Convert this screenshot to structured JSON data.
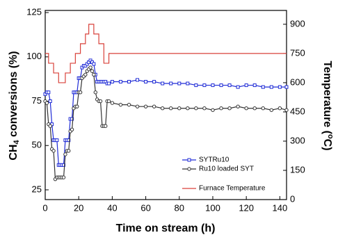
{
  "chart_data": {
    "type": "line",
    "xlabel": "Time on stream (h)",
    "ylabel": [
      "CH",
      "4",
      " conversions (%)"
    ],
    "y2label": [
      "Temperature (",
      "o",
      "C)"
    ],
    "xlim": [
      0,
      144
    ],
    "xticks": [
      0,
      20,
      40,
      60,
      80,
      100,
      120,
      140
    ],
    "ylim": [
      19.5,
      126.2
    ],
    "yticks": [
      25,
      50,
      75,
      100,
      125
    ],
    "y2lim": [
      0,
      971
    ],
    "y2ticks": [
      0,
      150,
      300,
      450,
      600,
      750,
      900
    ],
    "series": [
      {
        "name": "SYTRu10",
        "color": "#1f2bd6",
        "marker": "square",
        "x": [
          0,
          1,
          2,
          3,
          4,
          5,
          6,
          7,
          8,
          9,
          10,
          11,
          12,
          13,
          14,
          15,
          16,
          17,
          18,
          19,
          20,
          21,
          22,
          23,
          24,
          25,
          26,
          27,
          28,
          29,
          30,
          31,
          32,
          33,
          34,
          35,
          36,
          37,
          38,
          40,
          45,
          50,
          55,
          60,
          65,
          70,
          75,
          80,
          85,
          90,
          95,
          100,
          105,
          110,
          115,
          120,
          125,
          130,
          135,
          140,
          144
        ],
        "values": [
          79,
          80,
          80,
          75,
          62,
          53,
          53,
          53,
          39,
          39,
          39,
          39,
          53,
          53,
          53,
          65,
          65,
          80,
          80,
          80,
          88,
          88,
          94,
          95,
          95,
          96,
          97,
          98,
          97,
          96,
          90,
          86,
          86,
          86,
          86,
          86,
          86,
          85,
          85,
          86,
          86,
          86,
          87,
          86,
          86,
          85,
          85,
          85,
          85,
          84,
          84,
          84,
          84,
          84,
          83,
          84,
          84,
          83,
          83,
          83,
          83
        ]
      },
      {
        "name": "Ru10 loaded SYT",
        "color": "#333333",
        "marker": "circle",
        "x": [
          0,
          1,
          2,
          3,
          4,
          5,
          6,
          7,
          8,
          9,
          10,
          11,
          12,
          13,
          14,
          15,
          16,
          17,
          18,
          19,
          20,
          21,
          22,
          23,
          24,
          25,
          26,
          27,
          28,
          29,
          30,
          31,
          32,
          33,
          34,
          35,
          36,
          37,
          38,
          40,
          45,
          50,
          55,
          60,
          65,
          70,
          75,
          80,
          85,
          90,
          95,
          100,
          105,
          110,
          115,
          120,
          125,
          130,
          135,
          140,
          144
        ],
        "values": [
          75,
          74,
          62,
          61,
          48,
          47,
          31,
          32,
          32,
          32,
          32,
          32,
          45,
          47,
          47,
          58,
          59,
          71,
          72,
          72,
          80,
          80,
          88,
          89,
          90,
          92,
          93,
          94,
          92,
          90,
          80,
          76,
          75,
          75,
          61,
          61,
          61,
          75,
          75,
          74,
          73,
          73,
          72,
          72,
          72,
          71,
          71,
          71,
          71,
          71,
          71,
          70,
          71,
          71,
          72,
          71,
          71,
          71,
          70,
          71,
          70
        ]
      },
      {
        "name": "Furnace Temperature",
        "color": "#d9413a",
        "marker": "none",
        "axis": "y2",
        "x": [
          0,
          2,
          2,
          5,
          5,
          8,
          8,
          12,
          12,
          15,
          15,
          18,
          18,
          21,
          21,
          24,
          24,
          26,
          26,
          29,
          29,
          32,
          32,
          35,
          35,
          38,
          38,
          144
        ],
        "values": [
          750,
          750,
          700,
          700,
          650,
          650,
          600,
          600,
          650,
          650,
          700,
          700,
          750,
          750,
          800,
          800,
          850,
          850,
          900,
          900,
          850,
          850,
          800,
          800,
          700,
          700,
          750,
          750
        ]
      }
    ]
  }
}
